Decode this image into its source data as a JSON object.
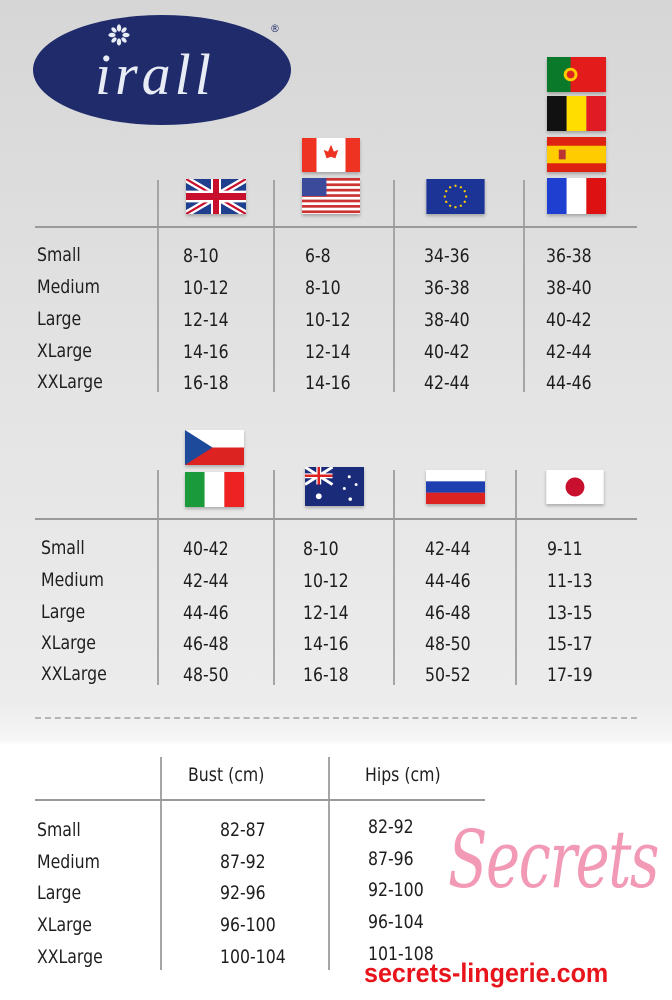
{
  "brand": {
    "logo_text": "irall",
    "registered": "®",
    "logo_color": "#1f2b6b"
  },
  "sizes": [
    "Small",
    "Medium",
    "Large",
    "XLarge",
    "XXLarge"
  ],
  "table1": {
    "columns": [
      {
        "flags": [
          "uk-flag-icon"
        ],
        "values": [
          "8-10",
          "10-12",
          "12-14",
          "14-16",
          "16-18"
        ]
      },
      {
        "flags": [
          "canada-flag-icon",
          "usa-flag-icon"
        ],
        "values": [
          "6-8",
          "8-10",
          "10-12",
          "12-14",
          "14-16"
        ]
      },
      {
        "flags": [
          "eu-flag-icon"
        ],
        "values": [
          "34-36",
          "36-38",
          "38-40",
          "40-42",
          "42-44"
        ]
      },
      {
        "flags": [
          "portugal-flag-icon",
          "belgium-flag-icon",
          "spain-flag-icon",
          "france-flag-icon"
        ],
        "values": [
          "36-38",
          "38-40",
          "40-42",
          "42-44",
          "44-46"
        ]
      }
    ]
  },
  "table2": {
    "columns": [
      {
        "flags": [
          "czech-flag-icon",
          "italy-flag-icon"
        ],
        "values": [
          "40-42",
          "42-44",
          "44-46",
          "46-48",
          "48-50"
        ]
      },
      {
        "flags": [
          "australia-flag-icon"
        ],
        "values": [
          "8-10",
          "10-12",
          "12-14",
          "14-16",
          "16-18"
        ]
      },
      {
        "flags": [
          "russia-flag-icon"
        ],
        "values": [
          "42-44",
          "44-46",
          "46-48",
          "48-50",
          "50-52"
        ]
      },
      {
        "flags": [
          "japan-flag-icon"
        ],
        "values": [
          "9-11",
          "11-13",
          "13-15",
          "15-17",
          "17-19"
        ]
      }
    ]
  },
  "table3": {
    "headers": [
      "Bust (cm)",
      "Hips (cm)"
    ],
    "bust": [
      "82-87",
      "87-92",
      "92-96",
      "96-100",
      "100-104"
    ],
    "hips": [
      "82-92",
      "87-96",
      "92-100",
      "96-104",
      "101-108"
    ]
  },
  "watermark": {
    "script": "Secrets",
    "url": "secrets-lingerie.com",
    "url_color": "#e8141b"
  }
}
